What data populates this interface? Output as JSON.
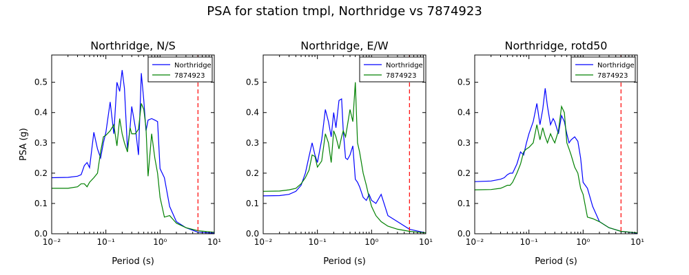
{
  "figure": {
    "suptitle": "PSA for station tmpl, Northridge vs 7874923"
  },
  "colors": {
    "northridge": "#0000ff",
    "sim": "#008000",
    "vline": "#ff0000"
  },
  "chart_data": [
    {
      "type": "line",
      "title": "Northridge, N/S",
      "xlabel": "Period (s)",
      "ylabel": "PSA (g)",
      "xscale": "log",
      "xlim": [
        0.01,
        10
      ],
      "ylim": [
        0,
        0.59
      ],
      "xtick_labels": [
        "10⁻²",
        "10⁻¹",
        "10⁰",
        "10¹"
      ],
      "ytick_labels": [
        "0.0",
        "0.1",
        "0.2",
        "0.3",
        "0.4",
        "0.5"
      ],
      "legend_position": "top-right",
      "vline_x": 5.0,
      "series": [
        {
          "name": "Northridge",
          "x": [
            0.01,
            0.02,
            0.03,
            0.035,
            0.04,
            0.045,
            0.05,
            0.06,
            0.07,
            0.08,
            0.09,
            0.1,
            0.12,
            0.14,
            0.16,
            0.18,
            0.2,
            0.22,
            0.25,
            0.28,
            0.3,
            0.35,
            0.4,
            0.45,
            0.5,
            0.55,
            0.6,
            0.7,
            0.8,
            0.9,
            1.0,
            1.2,
            1.5,
            2.0,
            3.0,
            5.0,
            10.0
          ],
          "y": [
            0.185,
            0.186,
            0.19,
            0.195,
            0.225,
            0.235,
            0.218,
            0.335,
            0.28,
            0.25,
            0.3,
            0.335,
            0.435,
            0.33,
            0.5,
            0.47,
            0.54,
            0.48,
            0.28,
            0.35,
            0.42,
            0.35,
            0.26,
            0.53,
            0.44,
            0.34,
            0.375,
            0.38,
            0.375,
            0.37,
            0.215,
            0.185,
            0.09,
            0.04,
            0.02,
            0.005,
            0.002
          ]
        },
        {
          "name": "7874923",
          "x": [
            0.01,
            0.02,
            0.03,
            0.035,
            0.04,
            0.045,
            0.05,
            0.06,
            0.07,
            0.08,
            0.09,
            0.1,
            0.12,
            0.14,
            0.16,
            0.18,
            0.2,
            0.22,
            0.25,
            0.28,
            0.3,
            0.35,
            0.4,
            0.45,
            0.5,
            0.55,
            0.6,
            0.7,
            0.8,
            0.9,
            1.0,
            1.2,
            1.5,
            2.0,
            3.0,
            5.0,
            10.0
          ],
          "y": [
            0.15,
            0.15,
            0.155,
            0.165,
            0.165,
            0.155,
            0.17,
            0.185,
            0.2,
            0.27,
            0.32,
            0.325,
            0.34,
            0.36,
            0.29,
            0.38,
            0.33,
            0.3,
            0.27,
            0.35,
            0.33,
            0.33,
            0.345,
            0.43,
            0.41,
            0.35,
            0.19,
            0.33,
            0.25,
            0.2,
            0.12,
            0.055,
            0.06,
            0.035,
            0.02,
            0.01,
            0.005
          ]
        }
      ]
    },
    {
      "type": "line",
      "title": "Northridge, E/W",
      "xlabel": "Period (s)",
      "xscale": "log",
      "xlim": [
        0.01,
        10
      ],
      "ylim": [
        0,
        0.59
      ],
      "xtick_labels": [
        "10⁻²",
        "10⁻¹",
        "10⁰",
        "10¹"
      ],
      "ytick_labels": [
        "0.0",
        "0.1",
        "0.2",
        "0.3",
        "0.4",
        "0.5"
      ],
      "legend_position": "top-right",
      "vline_x": 5.0,
      "series": [
        {
          "name": "Northridge",
          "x": [
            0.01,
            0.02,
            0.03,
            0.04,
            0.05,
            0.06,
            0.07,
            0.08,
            0.09,
            0.1,
            0.12,
            0.14,
            0.16,
            0.18,
            0.2,
            0.22,
            0.25,
            0.28,
            0.3,
            0.33,
            0.36,
            0.4,
            0.45,
            0.5,
            0.55,
            0.6,
            0.7,
            0.8,
            0.9,
            1.0,
            1.2,
            1.5,
            2.0,
            3.0,
            5.0,
            10.0
          ],
          "y": [
            0.125,
            0.126,
            0.13,
            0.14,
            0.16,
            0.2,
            0.255,
            0.3,
            0.26,
            0.235,
            0.31,
            0.41,
            0.37,
            0.32,
            0.4,
            0.35,
            0.44,
            0.445,
            0.34,
            0.25,
            0.245,
            0.26,
            0.29,
            0.18,
            0.17,
            0.155,
            0.12,
            0.11,
            0.13,
            0.11,
            0.1,
            0.13,
            0.06,
            0.04,
            0.015,
            0.003
          ]
        },
        {
          "name": "7874923",
          "x": [
            0.01,
            0.02,
            0.03,
            0.04,
            0.05,
            0.06,
            0.07,
            0.08,
            0.09,
            0.1,
            0.12,
            0.14,
            0.16,
            0.18,
            0.2,
            0.22,
            0.25,
            0.28,
            0.3,
            0.33,
            0.36,
            0.4,
            0.45,
            0.5,
            0.55,
            0.6,
            0.7,
            0.8,
            0.9,
            1.0,
            1.2,
            1.5,
            2.0,
            3.0,
            5.0,
            10.0
          ],
          "y": [
            0.14,
            0.141,
            0.145,
            0.15,
            0.165,
            0.185,
            0.21,
            0.26,
            0.255,
            0.22,
            0.24,
            0.33,
            0.3,
            0.235,
            0.34,
            0.32,
            0.28,
            0.32,
            0.34,
            0.32,
            0.36,
            0.41,
            0.37,
            0.5,
            0.3,
            0.27,
            0.2,
            0.16,
            0.12,
            0.09,
            0.06,
            0.04,
            0.025,
            0.015,
            0.008,
            0.003
          ]
        }
      ]
    },
    {
      "type": "line",
      "title": "Northridge, rotd50",
      "xlabel": "Period (s)",
      "xscale": "log",
      "xlim": [
        0.01,
        10
      ],
      "ylim": [
        0,
        0.59
      ],
      "xtick_labels": [
        "10⁻²",
        "10⁻¹",
        "10⁰",
        "10¹"
      ],
      "ytick_labels": [
        "0.0",
        "0.1",
        "0.2",
        "0.3",
        "0.4",
        "0.5"
      ],
      "legend_position": "top-right",
      "vline_x": 5.0,
      "series": [
        {
          "name": "Northridge",
          "x": [
            0.01,
            0.02,
            0.03,
            0.035,
            0.04,
            0.045,
            0.05,
            0.06,
            0.07,
            0.08,
            0.09,
            0.1,
            0.12,
            0.14,
            0.16,
            0.18,
            0.2,
            0.22,
            0.25,
            0.28,
            0.3,
            0.35,
            0.4,
            0.45,
            0.5,
            0.55,
            0.6,
            0.7,
            0.8,
            0.9,
            1.0,
            1.2,
            1.5,
            2.0,
            3.0,
            5.0,
            10.0
          ],
          "y": [
            0.172,
            0.174,
            0.18,
            0.185,
            0.195,
            0.2,
            0.2,
            0.23,
            0.27,
            0.26,
            0.3,
            0.33,
            0.37,
            0.43,
            0.36,
            0.41,
            0.48,
            0.42,
            0.36,
            0.38,
            0.37,
            0.33,
            0.39,
            0.37,
            0.33,
            0.3,
            0.31,
            0.32,
            0.305,
            0.25,
            0.17,
            0.15,
            0.09,
            0.04,
            0.02,
            0.008,
            0.002
          ]
        },
        {
          "name": "7874923",
          "x": [
            0.01,
            0.02,
            0.03,
            0.035,
            0.04,
            0.045,
            0.05,
            0.06,
            0.07,
            0.08,
            0.09,
            0.1,
            0.12,
            0.14,
            0.16,
            0.18,
            0.2,
            0.22,
            0.25,
            0.28,
            0.3,
            0.35,
            0.4,
            0.45,
            0.5,
            0.55,
            0.6,
            0.7,
            0.8,
            0.9,
            1.0,
            1.2,
            1.5,
            2.0,
            3.0,
            5.0,
            10.0
          ],
          "y": [
            0.145,
            0.146,
            0.15,
            0.155,
            0.16,
            0.16,
            0.17,
            0.2,
            0.23,
            0.27,
            0.28,
            0.285,
            0.3,
            0.36,
            0.31,
            0.35,
            0.32,
            0.3,
            0.33,
            0.31,
            0.3,
            0.34,
            0.42,
            0.4,
            0.3,
            0.28,
            0.26,
            0.22,
            0.2,
            0.15,
            0.13,
            0.055,
            0.05,
            0.04,
            0.02,
            0.008,
            0.003
          ]
        }
      ]
    }
  ]
}
